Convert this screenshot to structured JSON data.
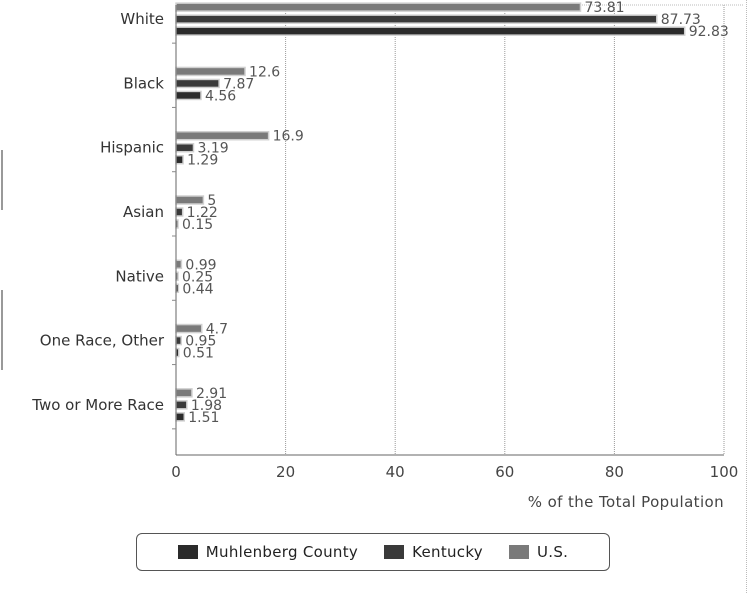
{
  "chart_data": {
    "type": "bar",
    "orientation": "horizontal",
    "categories": [
      "White",
      "Black",
      "Hispanic",
      "Asian",
      "Native",
      "One Race, Other",
      "Two or More Race"
    ],
    "series": [
      {
        "name": "U.S.",
        "values": [
          73.81,
          12.6,
          16.9,
          5,
          0.99,
          4.7,
          2.91
        ],
        "color": "#7a7a7a"
      },
      {
        "name": "Kentucky",
        "values": [
          87.73,
          7.87,
          3.19,
          1.22,
          0.25,
          0.95,
          1.98
        ],
        "color": "#3a3a3a"
      },
      {
        "name": "Muhlenberg County",
        "values": [
          92.83,
          4.56,
          1.29,
          0.15,
          0.44,
          0.51,
          1.51
        ],
        "color": "#2b2b2b"
      }
    ],
    "value_labels": [
      [
        "73.81",
        "12.6",
        "16.9",
        "5",
        "0.99",
        "4.7",
        "2.91"
      ],
      [
        "87.73",
        "7.87",
        "3.19",
        "1.22",
        "0.25",
        "0.95",
        "1.98"
      ],
      [
        "92.83",
        "4.56",
        "1.29",
        "0.15",
        "0.44",
        "0.51",
        "1.51"
      ]
    ],
    "x_ticks": [
      "0",
      "20",
      "40",
      "60",
      "80",
      "100"
    ],
    "xlim": [
      0,
      100
    ],
    "xlabel": "% of the Total Population",
    "grid": true,
    "legend": {
      "placement": "bottom",
      "items": [
        "Muhlenberg County",
        "Kentucky",
        "U.S."
      ]
    }
  }
}
